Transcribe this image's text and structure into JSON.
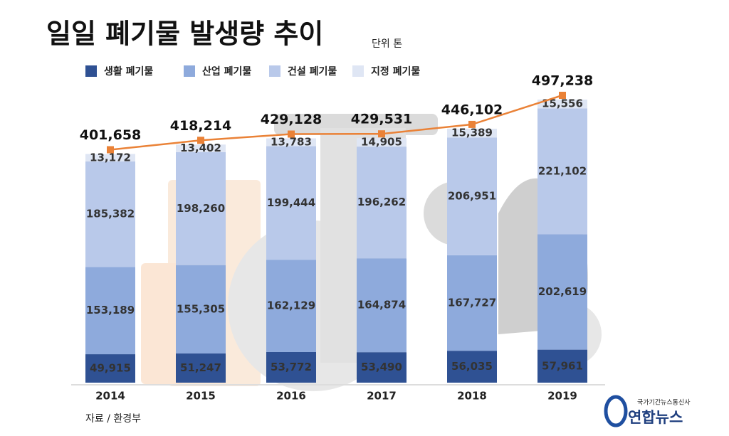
{
  "chart_data": {
    "type": "stacked-bar-line",
    "title": "일일 폐기물 발생량 추이",
    "unit": "단위 톤",
    "source": "자료 / 환경부",
    "credit_tagline": "국가기간뉴스통신사",
    "credit": "연합뉴스",
    "categories": [
      "2014",
      "2015",
      "2016",
      "2017",
      "2018",
      "2019"
    ],
    "series": [
      {
        "name": "생활 폐기물",
        "color": "#2f5193",
        "values": [
          49915,
          51247,
          53772,
          53490,
          56035,
          57961
        ],
        "value_labels": [
          "49,915",
          "51,247",
          "53,772",
          "53,490",
          "56,035",
          "57,961"
        ]
      },
      {
        "name": "산업 폐기물",
        "color": "#8eaadc",
        "values": [
          153189,
          155305,
          162129,
          164874,
          167727,
          202619
        ],
        "value_labels": [
          "153,189",
          "155,305",
          "162,129",
          "164,874",
          "167,727",
          "202,619"
        ]
      },
      {
        "name": "건설 폐기물",
        "color": "#b9c9ea",
        "values": [
          185382,
          198260,
          199444,
          196262,
          206951,
          221102
        ],
        "value_labels": [
          "185,382",
          "198,260",
          "199,444",
          "196,262",
          "206,951",
          "221,102"
        ]
      },
      {
        "name": "지정 폐기물",
        "color": "#dfe6f4",
        "values": [
          13172,
          13402,
          13783,
          14905,
          15389,
          15556
        ],
        "value_labels": [
          "13,172",
          "13,402",
          "13,783",
          "14,905",
          "15,389",
          "15,556"
        ]
      }
    ],
    "total_line": {
      "color": "#ea8237",
      "values": [
        401658,
        418214,
        429128,
        429531,
        446102,
        497238
      ],
      "value_labels": [
        "401,658",
        "418,214",
        "429,128",
        "429,531",
        "446,102",
        "497,238"
      ]
    }
  }
}
